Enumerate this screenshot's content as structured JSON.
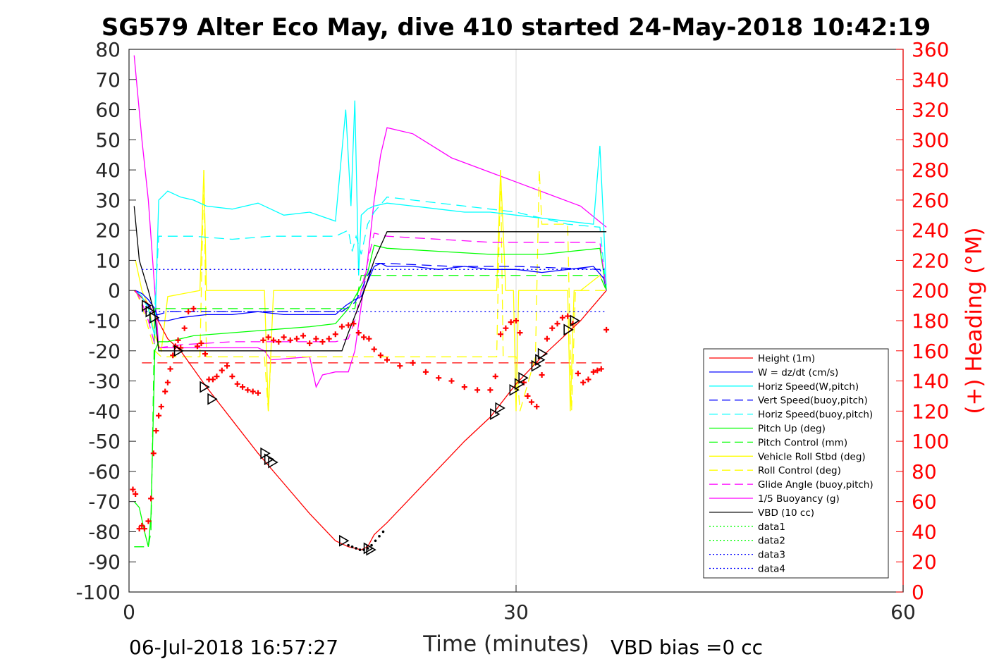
{
  "chart_data": {
    "type": "line",
    "title": "SG579 Alter Eco May, dive 410 started 24-May-2018 10:42:19",
    "xlabel": "Time (minutes)",
    "ylabel": "",
    "y2label": "(+) Heading (°M)",
    "xlim": [
      0,
      60
    ],
    "ylim": [
      -100,
      80
    ],
    "y2lim": [
      0,
      360
    ],
    "xticks": [
      "0",
      "30",
      "60"
    ],
    "yticks": [
      "80",
      "70",
      "60",
      "50",
      "40",
      "30",
      "20",
      "10",
      "0",
      "-10",
      "-20",
      "-30",
      "-40",
      "-50",
      "-60",
      "-70",
      "-80",
      "-90",
      "-100"
    ],
    "y2ticks": [
      "360",
      "340",
      "320",
      "300",
      "280",
      "260",
      "240",
      "220",
      "200",
      "180",
      "160",
      "140",
      "120",
      "100",
      "80",
      "60",
      "40",
      "20",
      "0"
    ],
    "grid": "x only",
    "legend_position": "lower-right",
    "footer_left": "06-Jul-2018 16:57:27",
    "footer_right": "VBD bias =0 cc",
    "colors": {
      "height": "#ff0000",
      "w": "#0000ff",
      "horiz": "#00ffff",
      "pitch": "#00ff00",
      "roll": "#ffff00",
      "glide": "#ff00ff",
      "vbd": "#000000",
      "heading": "#ff0000"
    },
    "series": [
      {
        "name": "Height (1m)",
        "color": "#ff0000",
        "style": "solid",
        "x": [
          0.4,
          1.5,
          2.0,
          3.0,
          4.0,
          6.0,
          8.0,
          10.0,
          12.0,
          14.0,
          16.0,
          17.0,
          18.0,
          18.5,
          19.0,
          20.0,
          22.0,
          24.0,
          26.0,
          28.0,
          30.0,
          32.0,
          34.0,
          35.0,
          36.0,
          37.0
        ],
        "y": [
          0,
          -4.5,
          -8,
          -16,
          -20,
          -32,
          -43,
          -54,
          -64,
          -74,
          -83,
          -85,
          -86,
          -85,
          -81,
          -77,
          -68,
          -59,
          -50,
          -42,
          -31,
          -22,
          -14,
          -10,
          -5,
          0
        ]
      },
      {
        "name": "W = dz/dt (cm/s)",
        "color": "#0000ff",
        "style": "solid",
        "x": [
          0.5,
          1.0,
          1.5,
          2.0,
          2.3,
          3.0,
          4.0,
          6.0,
          8.0,
          10.0,
          12.0,
          14.0,
          16.0,
          16.8,
          17.5,
          18.0,
          18.5,
          19.0,
          19.5,
          20.0,
          22.0,
          24.0,
          26.0,
          28.0,
          30.0,
          32.0,
          34.0,
          36.0,
          36.8,
          37.0
        ],
        "y": [
          0,
          -1,
          -3,
          -6,
          -10,
          -10,
          -9,
          -8,
          -8,
          -7,
          -8,
          -8,
          -8,
          -5,
          -3,
          -2,
          3,
          8,
          9,
          8,
          8,
          7,
          8,
          7,
          7,
          6,
          7,
          8,
          4,
          0
        ]
      },
      {
        "name": "Horiz Speed(W,pitch)",
        "color": "#00ffff",
        "style": "solid",
        "x": [
          0.5,
          1.0,
          1.5,
          1.8,
          2.0,
          2.3,
          3.0,
          4.0,
          5.0,
          6.0,
          8.0,
          10.0,
          12.0,
          14.0,
          16.0,
          16.8,
          17.2,
          17.5,
          17.8,
          18.0,
          18.5,
          19.0,
          20.0,
          22.0,
          24.0,
          26.0,
          28.0,
          30.0,
          32.0,
          34.0,
          36.0,
          36.5,
          36.8,
          37.0
        ],
        "y": [
          0,
          -2,
          -6,
          -12,
          -15,
          30,
          33,
          31,
          30,
          28,
          27,
          29,
          25,
          26,
          23,
          60,
          28,
          63,
          5,
          25,
          27,
          28,
          29,
          28,
          27,
          26,
          26,
          25,
          24,
          23,
          22,
          48,
          21,
          0
        ]
      },
      {
        "name": "Vert Speed(buoy,pitch)",
        "color": "#0000ff",
        "style": "dash",
        "x": [
          0.5,
          1.0,
          1.5,
          2.0,
          2.3,
          3.0,
          5.0,
          10.0,
          15.0,
          16.5,
          17.5,
          18.0,
          18.5,
          19.0,
          20.0,
          25.0,
          30.0,
          36.5,
          37.0
        ],
        "y": [
          0,
          -2,
          -5,
          -8,
          -8,
          -7,
          -7,
          -7,
          -7,
          -7,
          -4,
          0,
          5,
          9,
          9,
          8,
          8,
          7,
          2
        ]
      },
      {
        "name": "Horiz Speed(buoy,pitch)",
        "color": "#00ffff",
        "style": "dash",
        "x": [
          0.5,
          1.0,
          1.5,
          2.0,
          2.3,
          3.0,
          5.0,
          8.0,
          11.0,
          14.0,
          16.0,
          17.0,
          17.3,
          17.6,
          18.0,
          18.5,
          19.0,
          20.0,
          22.0,
          26.0,
          30.0,
          34.0,
          36.5,
          37.0
        ],
        "y": [
          0,
          -1,
          -3,
          -6,
          18,
          18,
          18,
          17,
          18,
          18,
          18,
          20,
          13,
          18,
          12,
          22,
          26,
          31,
          30,
          28,
          26,
          22,
          21,
          0
        ]
      },
      {
        "name": "Pitch Up (deg)",
        "color": "#00ff00",
        "style": "solid",
        "x": [
          0.4,
          0.8,
          1.2,
          1.5,
          1.7,
          2.0,
          2.3,
          3.0,
          5.0,
          8.0,
          11.0,
          14.0,
          16.0,
          17.0,
          17.8,
          18.5,
          19.0,
          20.0,
          24.0,
          28.0,
          32.0,
          36.5,
          37.0
        ],
        "y": [
          -70,
          -72,
          -80,
          -85,
          -75,
          -20,
          -17,
          -17,
          -15,
          -14,
          -13,
          -12,
          -11,
          -6,
          0,
          6,
          15,
          14,
          13,
          12,
          12,
          14,
          0
        ]
      },
      {
        "name": "Pitch Control (mm)",
        "color": "#00ff00",
        "style": "dash",
        "x": [
          0.4,
          1.2,
          1.2,
          1.5,
          1.7,
          2.0,
          2.3,
          3.0,
          16.5,
          17.5,
          18.0,
          36.5,
          37.0
        ],
        "y": [
          -85,
          -85,
          -85,
          -85,
          -80,
          -6,
          -6,
          -6,
          -6,
          -6,
          5,
          5,
          0
        ]
      },
      {
        "name": "Vehicle Roll Stbd (deg)",
        "color": "#ffff00",
        "style": "solid",
        "x": [
          0.5,
          1.0,
          1.5,
          2.0,
          2.5,
          3.0,
          5.5,
          5.8,
          6.0,
          6.3,
          6.5,
          10.5,
          10.8,
          11.2,
          11.5,
          17.0,
          17.5,
          28.5,
          28.8,
          29.2,
          29.5,
          29.8,
          30.0,
          30.2,
          31.0,
          32.0,
          33.0,
          34.0,
          34.2,
          34.5,
          35.0,
          36.5,
          37.0
        ],
        "y": [
          10,
          0,
          -5,
          -15,
          -20,
          -2,
          0,
          40,
          0,
          0,
          0,
          0,
          -40,
          0,
          0,
          0,
          0,
          0,
          40,
          0,
          0,
          0,
          -40,
          0,
          0,
          0,
          0,
          0,
          -40,
          0,
          0,
          5,
          0
        ]
      },
      {
        "name": "Roll Control (deg)",
        "color": "#ffff00",
        "style": "dash",
        "x": [
          0.5,
          1.0,
          2.0,
          2.5,
          5.5,
          5.8,
          6.0,
          10.5,
          10.8,
          11.0,
          28.5,
          28.8,
          29.0,
          30.0,
          30.3,
          31.5,
          31.8,
          32.0,
          34.0,
          34.3,
          34.6,
          37.0
        ],
        "y": [
          0,
          -5,
          -20,
          -22,
          -22,
          40,
          -22,
          -22,
          -40,
          -22,
          -22,
          40,
          -22,
          -22,
          -40,
          -22,
          40,
          22,
          22,
          -40,
          0,
          0
        ]
      },
      {
        "name": "Glide Angle (buoy,pitch)",
        "color": "#ff00ff",
        "style": "dash",
        "x": [
          0.5,
          1.0,
          1.5,
          2.0,
          2.3,
          4.0,
          8.0,
          12.0,
          16.0,
          17.0,
          17.5,
          18.0,
          19.0,
          20.0,
          24.0,
          28.0,
          32.0,
          36.5,
          37.0
        ],
        "y": [
          0,
          -4,
          -10,
          -18,
          -19,
          -18,
          -17,
          -17,
          -17,
          -16,
          -10,
          0,
          19,
          18,
          17,
          16,
          16,
          16,
          0
        ]
      },
      {
        "name": "1/5 Buoyancy (g)",
        "color": "#ff00ff",
        "style": "solid",
        "x": [
          0.4,
          1.0,
          1.5,
          2.0,
          2.3,
          10.0,
          10.5,
          11.0,
          14.0,
          14.5,
          15.0,
          16.0,
          17.0,
          17.5,
          18.0,
          18.5,
          19.0,
          19.5,
          20.0,
          22.0,
          25.0,
          30.0,
          35.0,
          37.0
        ],
        "y": [
          78,
          50,
          30,
          0,
          -19,
          -19,
          -20,
          -23,
          -22,
          -32,
          -28,
          -27,
          -27,
          -20,
          -5,
          10,
          30,
          45,
          54,
          52,
          44,
          36,
          28,
          21
        ]
      },
      {
        "name": "VBD (10 cc)",
        "color": "#000000",
        "style": "solid",
        "x": [
          0.4,
          0.8,
          1.5,
          2.0,
          2.3,
          3.0,
          5.0,
          10.0,
          16.5,
          17.0,
          18.0,
          19.0,
          20.0,
          37.0
        ],
        "y": [
          28,
          10,
          0,
          -8,
          -20,
          -20,
          -20,
          -20,
          -20,
          -14,
          -3,
          10,
          19.5,
          19.5
        ]
      },
      {
        "name": "data1",
        "color": "#00ff00",
        "style": "dot",
        "x": [],
        "y": []
      },
      {
        "name": "data2",
        "color": "#00ff00",
        "style": "dot",
        "x": [],
        "y": []
      },
      {
        "name": "data3",
        "color": "#0000ff",
        "style": "dot",
        "x": [
          1.0,
          37.0
        ],
        "y": [
          7,
          7
        ]
      },
      {
        "name": "data4",
        "color": "#0000ff",
        "style": "dot",
        "x": [
          1.0,
          37.0
        ],
        "y": [
          -7,
          -7
        ]
      }
    ],
    "reference_lines": [
      {
        "color": "#ff0000",
        "style": "dash",
        "x": [
          1.0,
          37.0
        ],
        "y": [
          -24,
          -24
        ]
      }
    ],
    "heading": {
      "color": "#ff0000",
      "axis": "right",
      "x": [
        0.3,
        0.5,
        0.8,
        1.0,
        1.2,
        1.5,
        1.7,
        1.9,
        2.1,
        2.3,
        2.5,
        2.8,
        3.0,
        3.2,
        3.4,
        3.6,
        3.8,
        4.0,
        4.3,
        4.6,
        5.0,
        5.3,
        5.6,
        5.9,
        6.2,
        6.5,
        6.8,
        7.2,
        7.6,
        8.0,
        8.4,
        8.8,
        9.2,
        9.6,
        10.0,
        10.4,
        10.8,
        11.2,
        11.6,
        12.0,
        12.5,
        13.0,
        13.5,
        14.0,
        14.5,
        15.0,
        15.5,
        16.0,
        16.5,
        17.0,
        17.4,
        17.8,
        18.2,
        18.6,
        19.0,
        19.5,
        20.0,
        21.0,
        22.0,
        23.0,
        24.0,
        25.0,
        26.0,
        27.0,
        28.0,
        28.4,
        28.8,
        29.2,
        29.6,
        30.0,
        30.3,
        30.6,
        30.9,
        31.2,
        31.6,
        32.0,
        32.4,
        32.8,
        33.2,
        33.6,
        34.0,
        34.4,
        34.8,
        35.2,
        35.6,
        36.0,
        36.3,
        36.6,
        37.0
      ],
      "y": [
        68,
        65,
        42,
        44,
        42,
        47,
        62,
        92,
        107,
        117,
        123,
        133,
        139,
        148,
        157,
        163,
        167,
        162,
        175,
        186,
        188,
        163,
        165,
        158,
        141,
        141,
        143,
        147,
        150,
        143,
        138,
        136,
        134,
        133,
        132,
        167,
        169,
        167,
        166,
        169,
        167,
        168,
        170,
        165,
        168,
        166,
        168,
        171,
        176,
        177,
        178,
        172,
        169,
        168,
        161,
        157,
        154,
        150,
        152,
        146,
        142,
        140,
        136,
        134,
        134,
        143,
        171,
        175,
        179,
        180,
        172,
        139,
        130,
        126,
        123,
        144,
        168,
        175,
        178,
        182,
        183,
        178,
        145,
        139,
        141,
        146,
        147,
        148,
        174
      ]
    },
    "markers_right": {
      "x": [
        1.3,
        1.6,
        1.9,
        3.8,
        5.8,
        6.4,
        10.5,
        10.8,
        11.1,
        16.6,
        18.5,
        18.7,
        28.3,
        28.7,
        29.8,
        30.2,
        30.5,
        31.5,
        31.8,
        32.0,
        34.0,
        34.5
      ],
      "y": [
        -5,
        -7,
        -9,
        -20,
        -32,
        -36,
        -54,
        -56,
        -57,
        -83,
        -85.5,
        -86,
        -41,
        -39,
        -33,
        -31,
        -29,
        -25,
        -23,
        -21,
        -13,
        -10
      ]
    },
    "descent_dots": {
      "x": [
        17.0,
        17.3,
        17.6,
        17.9,
        18.2,
        18.5,
        18.8,
        19.1,
        19.4,
        19.7
      ],
      "y": [
        -84.5,
        -85,
        -85.5,
        -86,
        -86,
        -85.5,
        -84.5,
        -83,
        -81.5,
        -80
      ]
    }
  }
}
